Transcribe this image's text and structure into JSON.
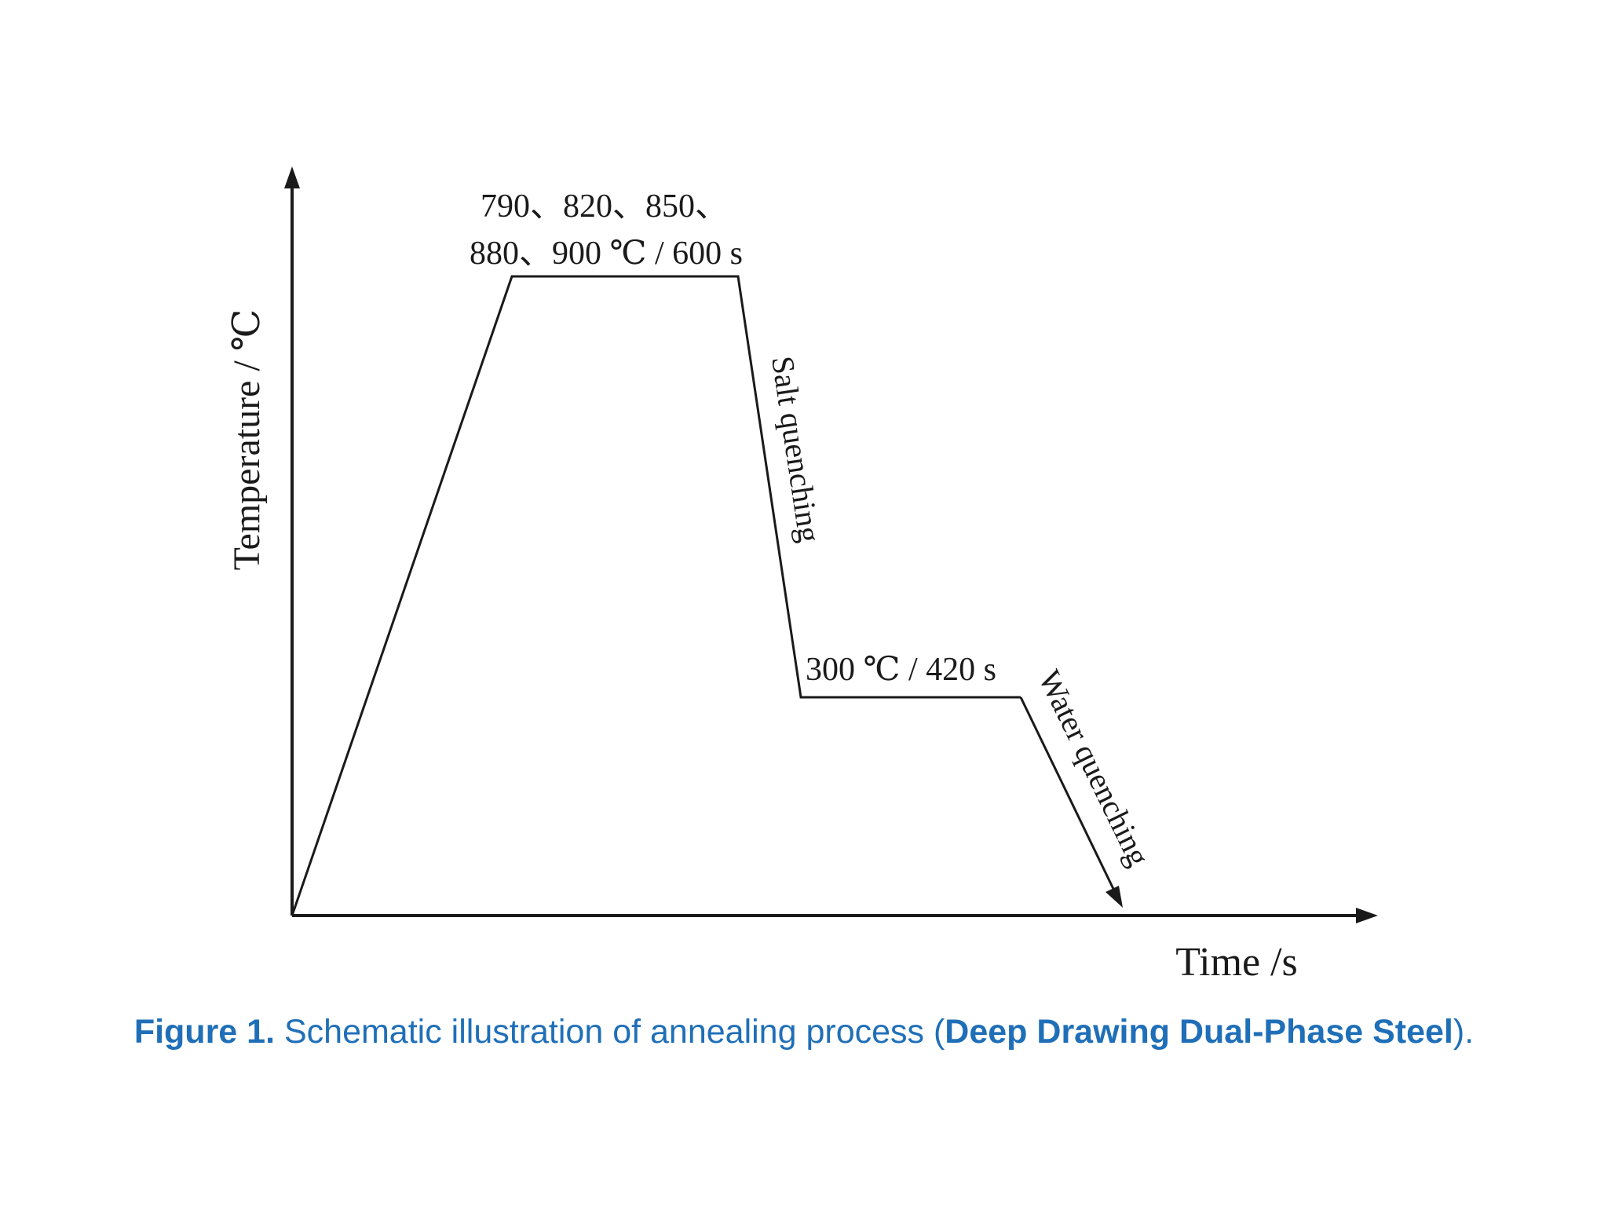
{
  "diagram": {
    "axes": {
      "y_label": "Temperature / ℃",
      "x_label": "Time /s"
    },
    "annotations": {
      "soak_line1": "790、820、850、",
      "soak_line2": "880、900 ℃ / 600 s",
      "salt_quench": "Salt quenching",
      "isothermal": "300 ℃ / 420 s",
      "water_quench": "Water quenching"
    }
  },
  "caption": {
    "figure_label": "Figure 1.",
    "text": " Schematic illustration of annealing process (",
    "bold_term": "Deep Drawing Dual-Phase Steel",
    "end": ")."
  }
}
